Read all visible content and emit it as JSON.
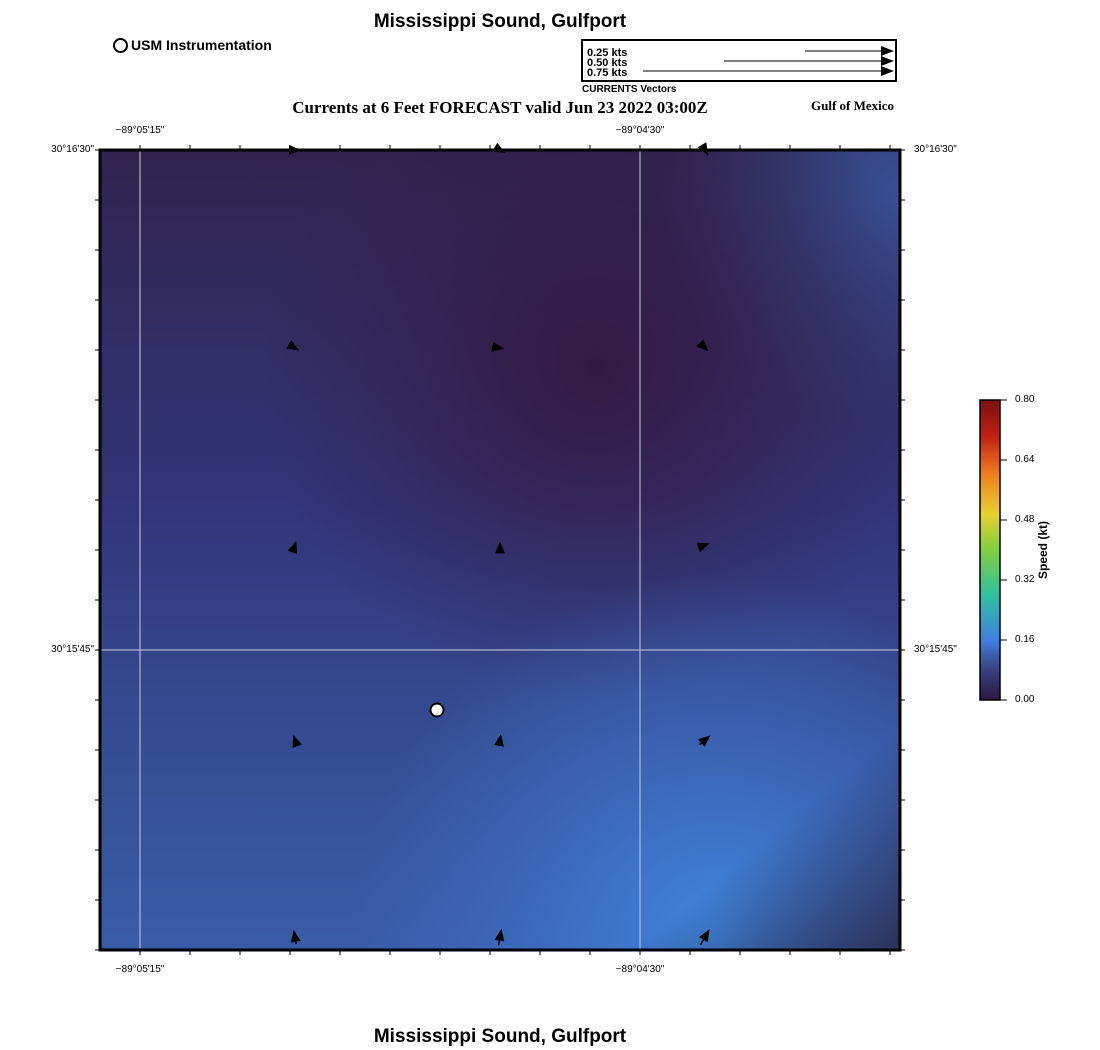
{
  "title": "Mississippi Sound, Gulfport",
  "footer_title": "Mississippi Sound, Gulfport",
  "legend": {
    "instrumentation": "USM Instrumentation"
  },
  "vector_legend": {
    "labels": [
      "0.25 kts",
      "0.50 kts",
      "0.75 kts"
    ],
    "caption": "CURRENTS Vectors"
  },
  "subtitle": "Currents at 6 Feet FORECAST valid Jun 23 2022 03:00Z",
  "region_label": "Gulf of Mexico",
  "axes": {
    "top_x": [
      "−89°05'15\"",
      "−89°04'30\""
    ],
    "bottom_x": [
      "−89°05'15\"",
      "−89°04'30\""
    ],
    "left_y": [
      "30°16'30\"",
      "30°15'45\""
    ],
    "right_y": [
      "30°16'30\"",
      "30°15'45\""
    ]
  },
  "colorbar": {
    "title": "Speed (kt)",
    "ticks": [
      "0.00",
      "0.16",
      "0.32",
      "0.48",
      "0.64",
      "0.80"
    ],
    "colors": [
      "#2a1a40",
      "#3a3f80",
      "#3f80e0",
      "#30c0a0",
      "#80d040",
      "#e8d030",
      "#f08020",
      "#c02010",
      "#7a1010"
    ]
  },
  "field_colors": {
    "dark": "#341a42",
    "mid": "#33407a",
    "light": "#3f80d8"
  },
  "station": {
    "name": "USM Instrumentation"
  },
  "vectors": [
    {
      "speed_kt": 0.1,
      "dir_deg": 90
    },
    {
      "speed_kt": 0.1,
      "dir_deg": 120
    },
    {
      "speed_kt": 0.1,
      "dir_deg": 150
    },
    {
      "speed_kt": 0.08,
      "dir_deg": 120
    },
    {
      "speed_kt": 0.07,
      "dir_deg": 100
    },
    {
      "speed_kt": 0.08,
      "dir_deg": 135
    },
    {
      "speed_kt": 0.07,
      "dir_deg": 20
    },
    {
      "speed_kt": 0.06,
      "dir_deg": 0
    },
    {
      "speed_kt": 0.08,
      "dir_deg": 70
    },
    {
      "speed_kt": 0.09,
      "dir_deg": -20
    },
    {
      "speed_kt": 0.1,
      "dir_deg": 10
    },
    {
      "speed_kt": 0.12,
      "dir_deg": 50
    },
    {
      "speed_kt": 0.12,
      "dir_deg": -10
    },
    {
      "speed_kt": 0.14,
      "dir_deg": 10
    },
    {
      "speed_kt": 0.15,
      "dir_deg": 30
    }
  ]
}
